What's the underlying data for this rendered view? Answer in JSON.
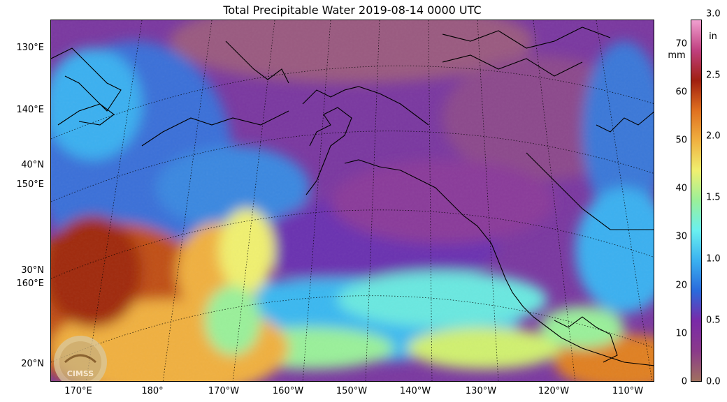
{
  "title": "Total Precipitable Water  2019-08-14 0000 UTC",
  "map": {
    "lat_labels": [
      "130°E",
      "140°E",
      "40°N",
      "150°E",
      "30°N",
      "160°E",
      "20°N"
    ],
    "lon_labels": [
      "170°E",
      "180°",
      "170°W",
      "160°W",
      "150°W",
      "140°W",
      "130°W",
      "120°W",
      "110°W"
    ],
    "logo_text": "CIMSS"
  },
  "colorbar": {
    "mm_ticks": [
      "70",
      "60",
      "50",
      "40",
      "30",
      "20",
      "10",
      "0"
    ],
    "in_ticks": [
      "3.0",
      "2.5",
      "2.0",
      "1.5",
      "1.0",
      "0.5",
      "0.0"
    ],
    "unit_left": "mm",
    "unit_right": "in",
    "range_mm": [
      0,
      75
    ],
    "colors": [
      "#a07060",
      "#8a3a8a",
      "#7a2aa8",
      "#2a6adc",
      "#3ab0f0",
      "#6af0f0",
      "#9af09a",
      "#f0f070",
      "#f0b040",
      "#e07020",
      "#a02010",
      "#c04080",
      "#f0a0d0"
    ]
  }
}
